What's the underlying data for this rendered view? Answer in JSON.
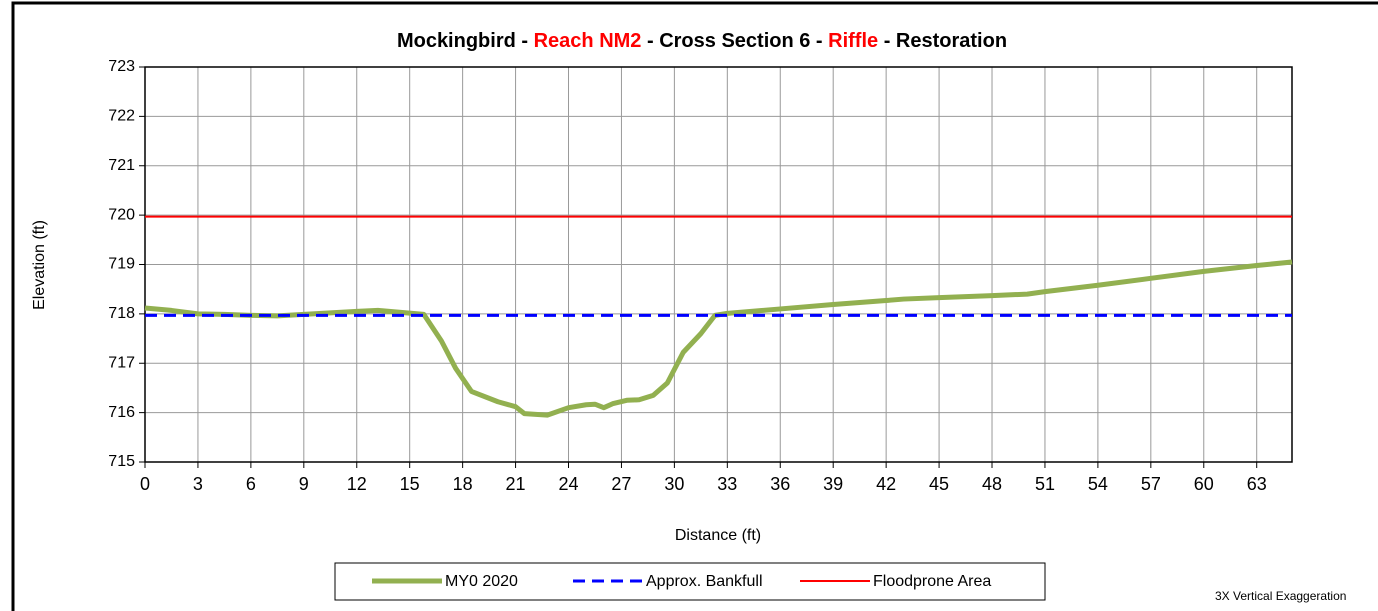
{
  "chart_data": {
    "type": "line",
    "title_parts": [
      {
        "text": "Mockingbird - ",
        "color": "#000000"
      },
      {
        "text": "Reach NM2",
        "color": "#ff0000"
      },
      {
        "text": " - Cross Section 6 - ",
        "color": "#000000"
      },
      {
        "text": "Riffle",
        "color": "#ff0000"
      },
      {
        "text": " - Restoration",
        "color": "#000000"
      }
    ],
    "x_label": "Distance (ft)",
    "y_label": "Elevation (ft)",
    "annotation": "3X Vertical Exaggeration",
    "xlim": [
      0,
      65
    ],
    "xticks": [
      0,
      3,
      6,
      9,
      12,
      15,
      18,
      21,
      24,
      27,
      30,
      33,
      36,
      39,
      42,
      45,
      48,
      51,
      54,
      57,
      60,
      63
    ],
    "ylim": [
      715,
      723
    ],
    "yticks": [
      715,
      716,
      717,
      718,
      719,
      720,
      721,
      722,
      723
    ],
    "grid": true,
    "legend": "bottom",
    "series": [
      {
        "name": "MY0 2020",
        "color": "#92b050",
        "style": "solid",
        "width": 5,
        "x": [
          0,
          1.5,
          3,
          4.5,
          6,
          7.5,
          9,
          10.5,
          12,
          13.2,
          14.5,
          15.8,
          16.8,
          17.6,
          18.5,
          20,
          21,
          21.5,
          22.8,
          24,
          25,
          25.5,
          26,
          26.5,
          27.3,
          28,
          28.8,
          29.6,
          30.5,
          31.5,
          32.3,
          33,
          36,
          39,
          42,
          43,
          45,
          48,
          50,
          51,
          54,
          57,
          60,
          63,
          65
        ],
        "values": [
          718.12,
          718.07,
          718.0,
          717.99,
          717.97,
          717.96,
          717.99,
          718.02,
          718.05,
          718.07,
          718.03,
          717.99,
          717.45,
          716.9,
          716.43,
          716.22,
          716.12,
          715.98,
          715.95,
          716.1,
          716.16,
          716.17,
          716.1,
          716.18,
          716.25,
          716.26,
          716.35,
          716.6,
          717.22,
          717.6,
          717.97,
          718.01,
          718.1,
          718.19,
          718.27,
          718.3,
          718.33,
          718.37,
          718.4,
          718.45,
          718.58,
          718.72,
          718.86,
          718.98,
          719.05
        ]
      },
      {
        "name": "Approx. Bankfull",
        "color": "#0000ff",
        "style": "dashed",
        "width": 3,
        "x": [
          0,
          65
        ],
        "values": [
          717.97,
          717.97
        ]
      },
      {
        "name": "Floodprone Area",
        "color": "#ff0000",
        "style": "solid",
        "width": 2,
        "x": [
          0,
          65
        ],
        "values": [
          719.97,
          719.97
        ]
      }
    ]
  }
}
